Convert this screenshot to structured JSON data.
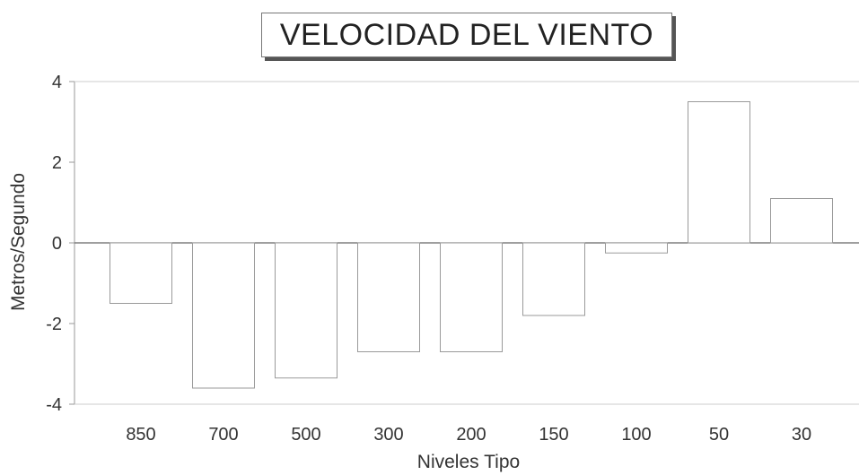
{
  "chart_data": {
    "type": "bar",
    "title": "VELOCIDAD DEL VIENTO",
    "xlabel": "Niveles Tipo",
    "ylabel": "Metros/Segundo",
    "categories": [
      "850",
      "700",
      "500",
      "300",
      "200",
      "150",
      "100",
      "50",
      "30"
    ],
    "values": [
      -1.5,
      -3.6,
      -3.35,
      -2.7,
      -2.7,
      -1.8,
      -0.25,
      3.5,
      1.1
    ],
    "ylim": [
      -4,
      4
    ],
    "yticks": [
      "4",
      "2",
      "0",
      "-2",
      "-4"
    ],
    "grid": false,
    "colors": {
      "bar_fill": "#ffffff",
      "bar_stroke": "#9a9a9a",
      "axis": "#999999",
      "text": "#333333"
    }
  }
}
